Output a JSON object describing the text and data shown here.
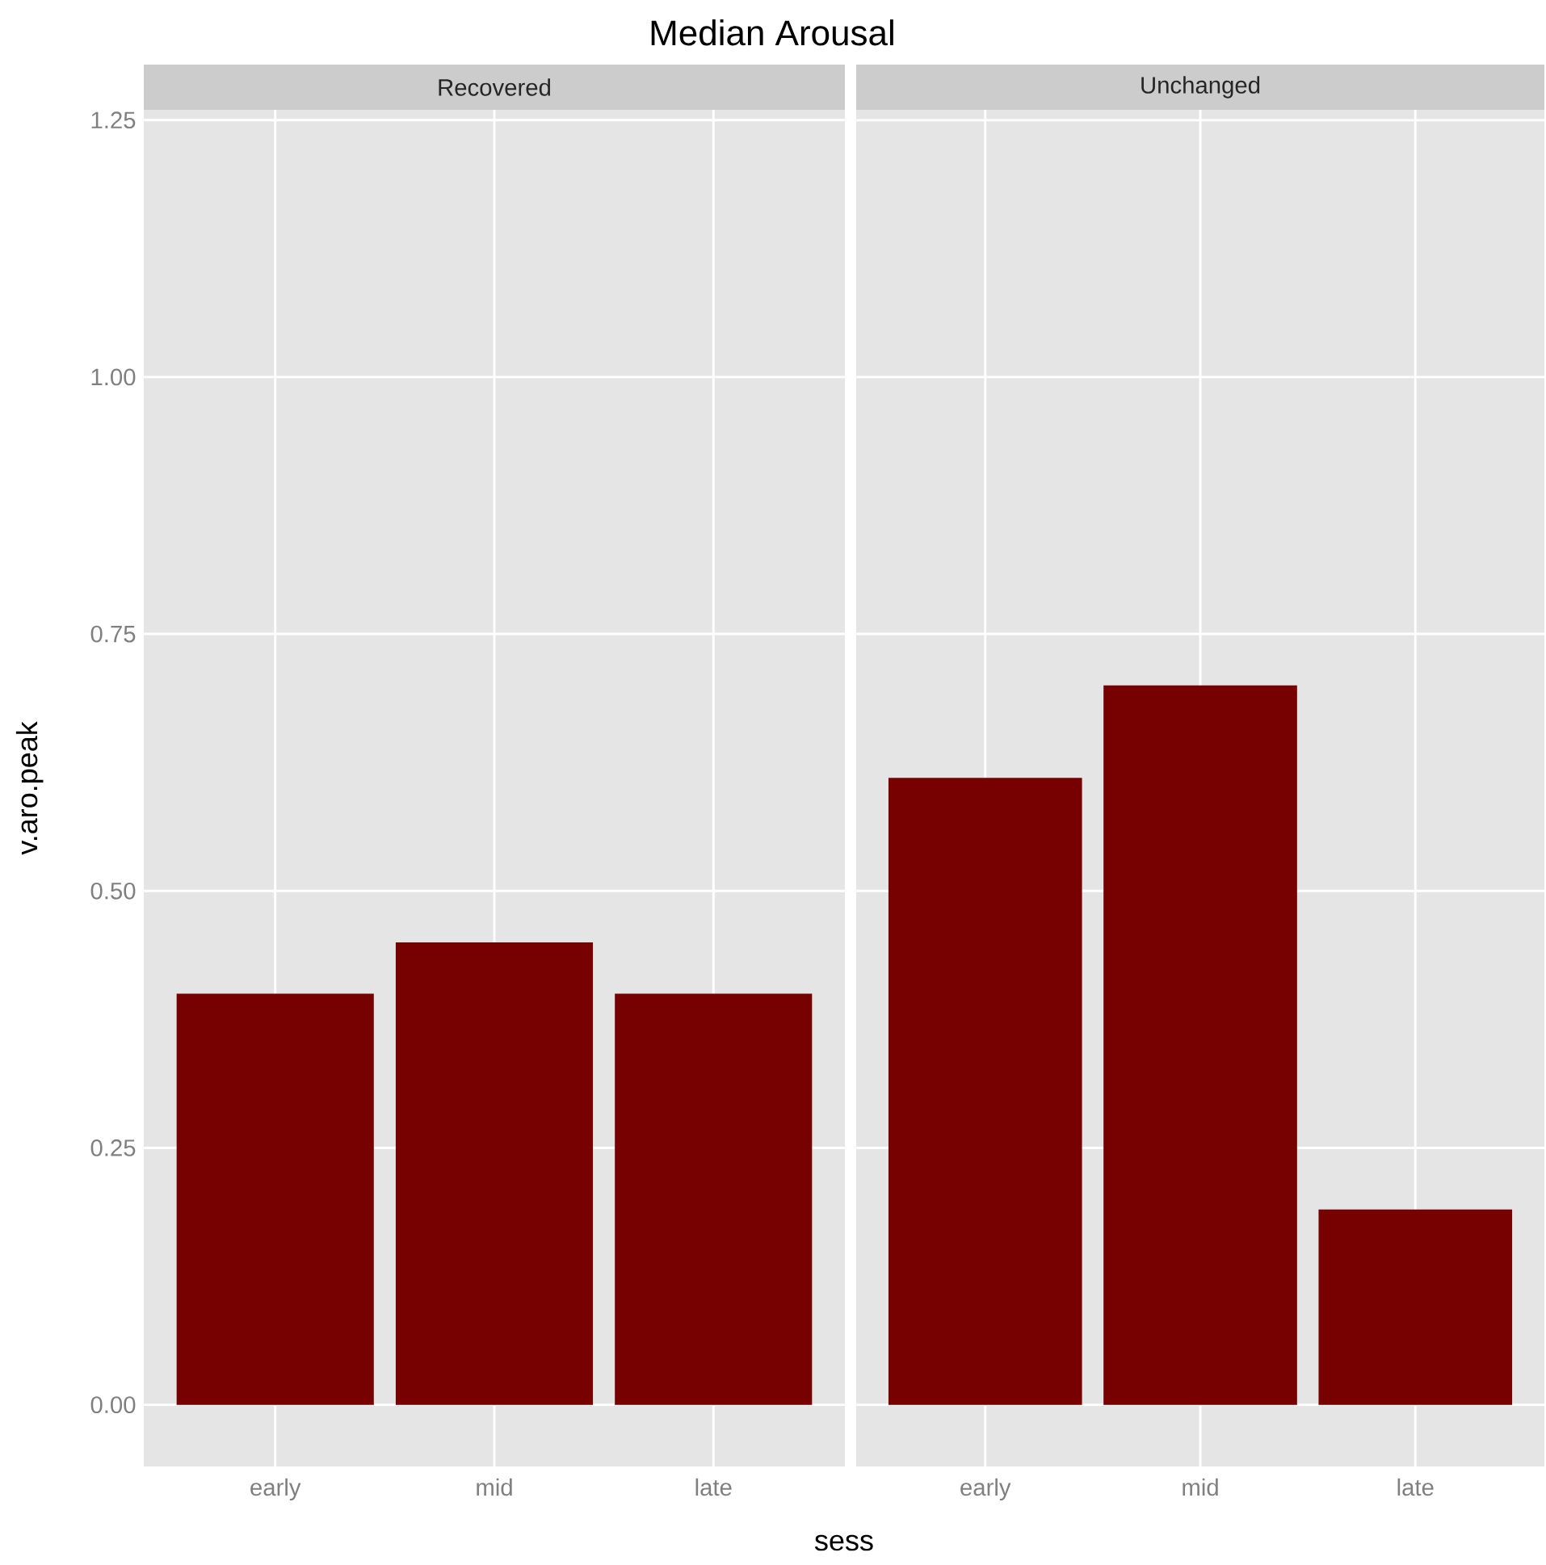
{
  "chart_data": [
    {
      "type": "bar",
      "title": "Median Arousal",
      "subtitle": "Recovered",
      "xlabel": "sess",
      "ylabel": "v.aro.peak",
      "categories": [
        "early",
        "mid",
        "late"
      ],
      "values": [
        0.4,
        0.45,
        0.4
      ],
      "color": "#770000",
      "ylim": [
        -0.06,
        1.26
      ],
      "yticks": [
        {
          "value": 0,
          "label": "0.00"
        },
        {
          "value": 0.25,
          "label": "0.25"
        },
        {
          "value": 0.5,
          "label": "0.50"
        },
        {
          "value": 0.75,
          "label": "0.75"
        },
        {
          "value": 1,
          "label": "1.00"
        },
        {
          "value": 1.25,
          "label": "1.25"
        }
      ],
      "grid": true
    },
    {
      "type": "bar",
      "subtitle": "Unchanged",
      "categories": [
        "early",
        "mid",
        "late"
      ],
      "values": [
        0.61,
        0.7,
        0.19
      ],
      "color": "#770000",
      "ylim": [
        -0.06,
        1.26
      ],
      "yticks": [
        {
          "value": 0,
          "label": null
        },
        {
          "value": 0.25,
          "label": null
        },
        {
          "value": 0.5,
          "label": null
        },
        {
          "value": 0.75,
          "label": null
        },
        {
          "value": 1,
          "label": null
        },
        {
          "value": 1.25,
          "label": null
        }
      ],
      "grid": true,
      "tick_labels": "x"
    }
  ]
}
